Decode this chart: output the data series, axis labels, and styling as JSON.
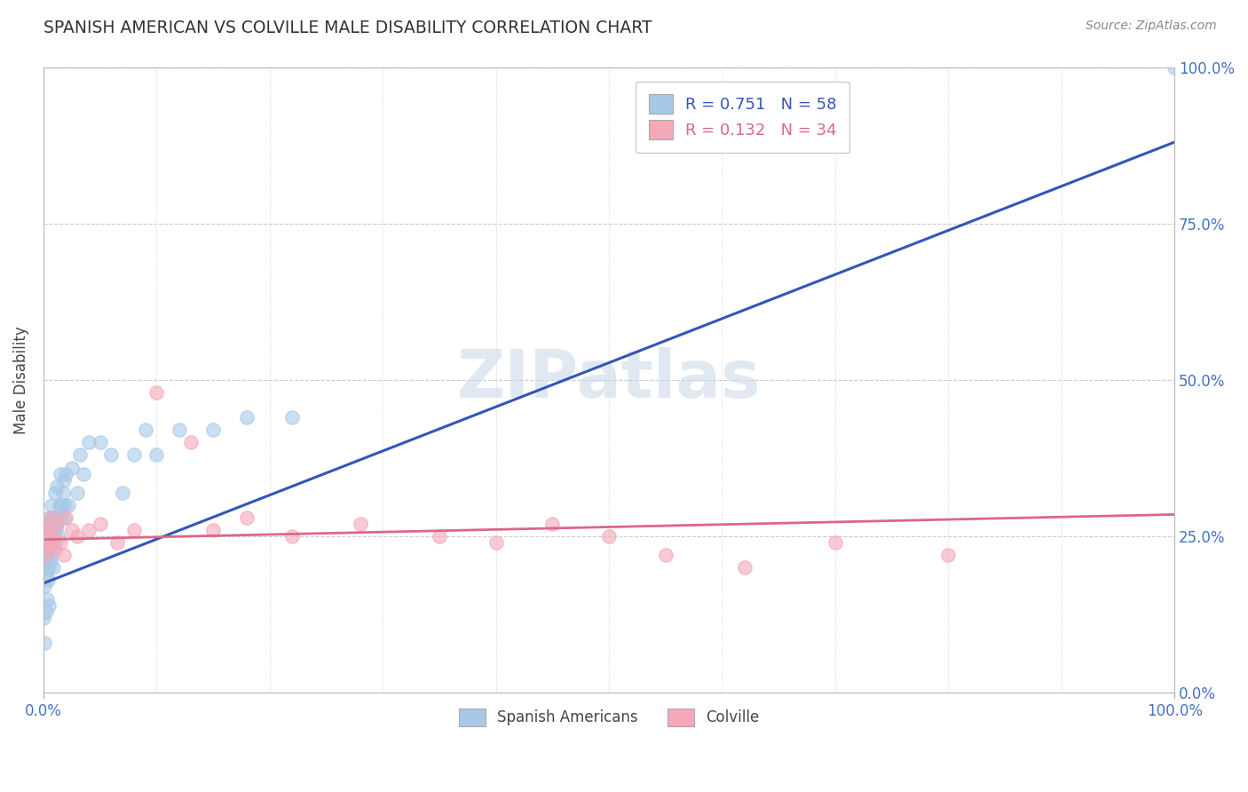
{
  "title": "SPANISH AMERICAN VS COLVILLE MALE DISABILITY CORRELATION CHART",
  "source": "Source: ZipAtlas.com",
  "ylabel": "Male Disability",
  "xlim": [
    0,
    1.0
  ],
  "ylim": [
    0,
    1.0
  ],
  "ytick_positions": [
    0.0,
    0.25,
    0.5,
    0.75,
    1.0
  ],
  "ytick_labels": [
    "0.0%",
    "25.0%",
    "50.0%",
    "75.0%",
    "100.0%"
  ],
  "background_color": "#ffffff",
  "watermark": "ZIPatlas",
  "blue_color": "#a8c8e8",
  "pink_color": "#f4a8b8",
  "line_blue": "#3355bb",
  "line_pink": "#dd6688",
  "blue_line_x0": 0.0,
  "blue_line_y0": 0.175,
  "blue_line_x1": 1.0,
  "blue_line_y1": 0.88,
  "pink_line_x0": 0.0,
  "pink_line_y0": 0.245,
  "pink_line_x1": 1.0,
  "pink_line_y1": 0.285,
  "spanish_x": [
    0.0,
    0.001,
    0.001,
    0.002,
    0.002,
    0.002,
    0.003,
    0.003,
    0.003,
    0.004,
    0.004,
    0.004,
    0.005,
    0.005,
    0.005,
    0.005,
    0.006,
    0.006,
    0.007,
    0.007,
    0.007,
    0.008,
    0.008,
    0.009,
    0.009,
    0.01,
    0.01,
    0.01,
    0.011,
    0.012,
    0.012,
    0.013,
    0.014,
    0.015,
    0.015,
    0.016,
    0.017,
    0.018,
    0.018,
    0.019,
    0.02,
    0.022,
    0.025,
    0.03,
    0.032,
    0.035,
    0.04,
    0.05,
    0.06,
    0.07,
    0.08,
    0.09,
    0.1,
    0.12,
    0.15,
    0.18,
    0.22,
    1.0
  ],
  "spanish_y": [
    0.12,
    0.08,
    0.17,
    0.13,
    0.19,
    0.22,
    0.15,
    0.2,
    0.27,
    0.18,
    0.22,
    0.25,
    0.14,
    0.2,
    0.23,
    0.28,
    0.21,
    0.25,
    0.22,
    0.26,
    0.3,
    0.23,
    0.28,
    0.2,
    0.26,
    0.24,
    0.28,
    0.32,
    0.26,
    0.27,
    0.33,
    0.25,
    0.3,
    0.28,
    0.35,
    0.3,
    0.32,
    0.28,
    0.34,
    0.3,
    0.35,
    0.3,
    0.36,
    0.32,
    0.38,
    0.35,
    0.4,
    0.4,
    0.38,
    0.32,
    0.38,
    0.42,
    0.38,
    0.42,
    0.42,
    0.44,
    0.44,
    1.0
  ],
  "colville_x": [
    0.0,
    0.001,
    0.002,
    0.003,
    0.004,
    0.005,
    0.006,
    0.007,
    0.008,
    0.01,
    0.012,
    0.015,
    0.018,
    0.02,
    0.025,
    0.03,
    0.04,
    0.05,
    0.065,
    0.08,
    0.1,
    0.13,
    0.15,
    0.18,
    0.22,
    0.28,
    0.35,
    0.4,
    0.45,
    0.5,
    0.55,
    0.62,
    0.7,
    0.8
  ],
  "colville_y": [
    0.24,
    0.22,
    0.27,
    0.25,
    0.23,
    0.26,
    0.24,
    0.28,
    0.25,
    0.23,
    0.27,
    0.24,
    0.22,
    0.28,
    0.26,
    0.25,
    0.26,
    0.27,
    0.24,
    0.26,
    0.48,
    0.4,
    0.26,
    0.28,
    0.25,
    0.27,
    0.25,
    0.24,
    0.27,
    0.25,
    0.22,
    0.2,
    0.24,
    0.22
  ]
}
